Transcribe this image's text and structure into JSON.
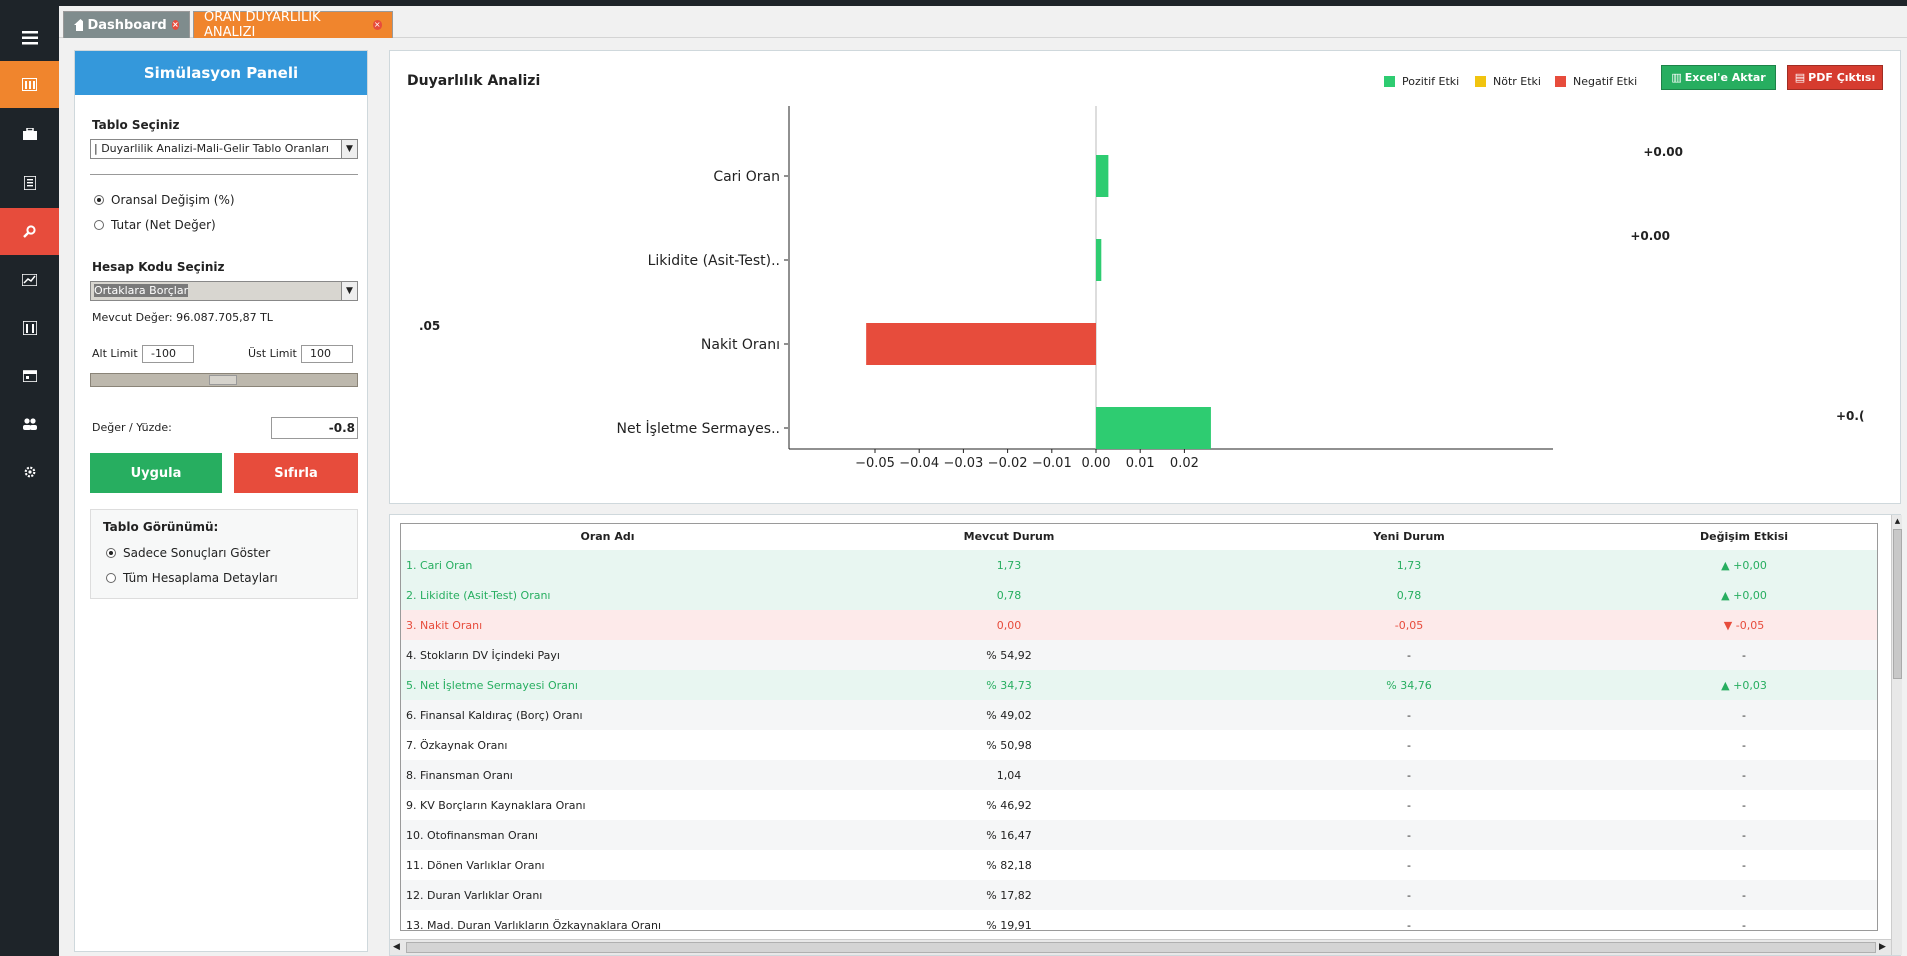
{
  "nav": {
    "items": [
      "menu-icon",
      "dashboard-icon",
      "briefcase-icon",
      "document-icon",
      "search-icon",
      "chart-icon",
      "building-icon",
      "calendar-icon",
      "users-icon",
      "gear-icon"
    ],
    "active_index": 4,
    "highlight_index": 1,
    "colors": {
      "active": "#e74c3c",
      "highlight": "#f0852d"
    }
  },
  "tabs": {
    "dashboard": "Dashboard",
    "active": "ORAN DUYARLILIK ANALIZI"
  },
  "panel": {
    "title": "Simülasyon Paneli",
    "table_label": "Tablo Seçiniz",
    "table_value": "| Duyarlilik Analizi-Mali-Gelir Tablo Oranları",
    "radio_ratio": "Oransal Değişim (%)",
    "radio_amount": "Tutar (Net Değer)",
    "account_label": "Hesap Kodu Seçiniz",
    "account_value": "Ortaklara Borçlar",
    "current_value": "Mevcut Değer: 96.087.705,87 TL",
    "lower_label": "Alt Limit",
    "lower_value": "-100",
    "upper_label": "Üst Limit",
    "upper_value": "100",
    "slider_value": -0.8,
    "value_label": "Değer / Yüzde:",
    "value": "-0.8",
    "apply_button": "Uygula",
    "reset_button": "Sıfırla",
    "view_title": "Tablo Görünümü:",
    "view_results": "Sadece Sonuçları Göster",
    "view_details": "Tüm Hesaplama Detayları"
  },
  "chart_panel": {
    "title": "Duyarlılık Analizi",
    "legend": {
      "positive": "Pozitif Etki",
      "neutral": "Nötr Etki",
      "negative": "Negatif Etki"
    },
    "excel_button": "Excel'e Aktar",
    "pdf_button": "PDF Çıktısı"
  },
  "chart_data": {
    "type": "bar",
    "orientation": "horizontal",
    "categories": [
      "Cari Oran",
      "Likidite (Asit-Test)..",
      "Nakit Oranı",
      "Net İşletme Sermayes.."
    ],
    "values": [
      0.0028,
      0.0012,
      -0.052,
      0.026
    ],
    "value_labels": [
      "+0.00",
      "+0.00",
      ".05",
      "+0.("
    ],
    "xlim": [
      -0.055,
      0.03
    ],
    "xticks": [
      -0.05,
      -0.04,
      -0.03,
      -0.02,
      -0.01,
      0.0,
      0.01,
      0.02
    ],
    "xtick_labels": [
      "−0.05",
      "−0.04",
      "−0.03",
      "−0.02",
      "−0.01",
      "0.00",
      "0.01",
      "0.02"
    ],
    "colors": {
      "positive": "#2ecc71",
      "neutral": "#f1c40f",
      "negative": "#e74c3c"
    },
    "title": "",
    "xlabel": "",
    "ylabel": "",
    "grid": false
  },
  "table": {
    "headers": [
      "Oran Adı",
      "Mevcut Durum",
      "Yeni Durum",
      "Değişim Etkisi"
    ],
    "rows": [
      {
        "name": "1. Cari Oran",
        "current": "1,73",
        "new": "1,73",
        "change": "▲ +0,00",
        "status": "positive"
      },
      {
        "name": "2. Likidite (Asit-Test) Oranı",
        "current": "0,78",
        "new": "0,78",
        "change": "▲ +0,00",
        "status": "positive"
      },
      {
        "name": "3. Nakit Oranı",
        "current": "0,00",
        "new": "-0,05",
        "change": "▼ -0,05",
        "status": "negative"
      },
      {
        "name": "4. Stokların DV İçindeki Payı",
        "current": "% 54,92",
        "new": "-",
        "change": "-",
        "status": "neutral"
      },
      {
        "name": "5. Net İşletme Sermayesi Oranı",
        "current": "% 34,73",
        "new": "% 34,76",
        "change": "▲ +0,03",
        "status": "positive"
      },
      {
        "name": "6. Finansal Kaldıraç (Borç) Oranı",
        "current": "% 49,02",
        "new": "-",
        "change": "-",
        "status": "neutral"
      },
      {
        "name": "7. Özkaynak Oranı",
        "current": "% 50,98",
        "new": "-",
        "change": "-",
        "status": "neutral"
      },
      {
        "name": "8. Finansman Oranı",
        "current": "1,04",
        "new": "-",
        "change": "-",
        "status": "neutral"
      },
      {
        "name": "9. KV Borçların Kaynaklara Oranı",
        "current": "% 46,92",
        "new": "-",
        "change": "-",
        "status": "neutral"
      },
      {
        "name": "10. Otofinansman Oranı",
        "current": "% 16,47",
        "new": "-",
        "change": "-",
        "status": "neutral"
      },
      {
        "name": "11. Dönen Varlıklar Oranı",
        "current": "% 82,18",
        "new": "-",
        "change": "-",
        "status": "neutral"
      },
      {
        "name": "12. Duran Varlıklar Oranı",
        "current": "% 17,82",
        "new": "-",
        "change": "-",
        "status": "neutral"
      },
      {
        "name": "13. Mad. Duran Varlıkların Özkaynaklara Oranı",
        "current": "% 19,91",
        "new": "-",
        "change": "-",
        "status": "neutral"
      }
    ],
    "row_colors": {
      "positive_bg": "#e8f6f1",
      "positive_fg": "#27ae60",
      "negative_bg": "#fdeaea",
      "negative_fg": "#e74c3c"
    }
  }
}
